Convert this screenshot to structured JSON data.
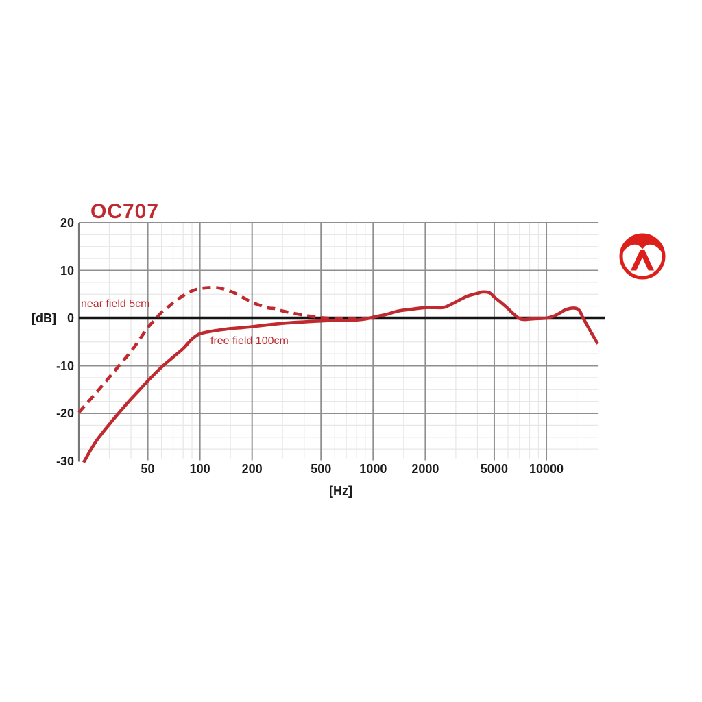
{
  "page": {
    "background": "#ffffff"
  },
  "header": {
    "title": "OC707"
  },
  "logo": {
    "name": "austrian-audio-logo",
    "color": "#dd1f1b"
  },
  "axis": {
    "y_unit_label": "[dB]",
    "x_unit_label": "[Hz]",
    "y_ticks": [
      {
        "label": "20",
        "value": 20
      },
      {
        "label": "10",
        "value": 10
      },
      {
        "label": "0",
        "value": 0
      },
      {
        "label": "-10",
        "value": -10
      },
      {
        "label": "-20",
        "value": -20
      },
      {
        "label": "-30",
        "value": -30
      }
    ],
    "x_ticks": [
      {
        "label": "50",
        "value": 50
      },
      {
        "label": "100",
        "value": 100
      },
      {
        "label": "200",
        "value": 200
      },
      {
        "label": "500",
        "value": 500
      },
      {
        "label": "1000",
        "value": 1000
      },
      {
        "label": "2000",
        "value": 2000
      },
      {
        "label": "5000",
        "value": 5000
      },
      {
        "label": "10000",
        "value": 10000
      }
    ]
  },
  "chart_data": {
    "type": "line",
    "title": "OC707",
    "xlabel": "[Hz]",
    "ylabel": "[dB]",
    "x_scale": "log",
    "xlim": [
      20,
      20000
    ],
    "ylim": [
      -30,
      20
    ],
    "grid": true,
    "x_major_gridlines": [
      50,
      100,
      200,
      500,
      1000,
      2000,
      5000,
      10000
    ],
    "x_minor_gridlines": [
      30,
      40,
      60,
      70,
      80,
      90,
      150,
      300,
      400,
      600,
      700,
      800,
      900,
      1500,
      3000,
      4000,
      6000,
      7000,
      8000,
      9000,
      15000
    ],
    "y_major_gridlines": [
      20,
      10,
      -10,
      -20
    ],
    "y_minor_step_db": 2.5,
    "zero_line_db": 0,
    "legend_position": "inside-left",
    "series": [
      {
        "name": "near field 5cm",
        "line_style": "dashed",
        "color": "#bf2a30",
        "points": [
          [
            20,
            -19.8
          ],
          [
            25,
            -15.8
          ],
          [
            30,
            -12.4
          ],
          [
            35,
            -9.5
          ],
          [
            40,
            -7.0
          ],
          [
            45,
            -4.4
          ],
          [
            50,
            -2.0
          ],
          [
            56,
            0.0
          ],
          [
            60,
            1.2
          ],
          [
            65,
            2.2
          ],
          [
            70,
            3.2
          ],
          [
            80,
            4.7
          ],
          [
            90,
            5.7
          ],
          [
            100,
            6.2
          ],
          [
            112,
            6.4
          ],
          [
            125,
            6.4
          ],
          [
            140,
            6.0
          ],
          [
            160,
            5.2
          ],
          [
            180,
            4.2
          ],
          [
            200,
            3.3
          ],
          [
            225,
            2.6
          ],
          [
            250,
            2.1
          ],
          [
            270,
            2.0
          ],
          [
            300,
            1.5
          ],
          [
            350,
            1.0
          ],
          [
            400,
            0.6
          ],
          [
            450,
            0.3
          ],
          [
            500,
            0.1
          ],
          [
            550,
            0.0
          ],
          [
            600,
            -0.1
          ],
          [
            700,
            -0.2
          ],
          [
            800,
            -0.2
          ],
          [
            900,
            -0.1
          ],
          [
            1000,
            0.1
          ]
        ]
      },
      {
        "name": "free field 100cm",
        "line_style": "solid",
        "color": "#bf2a30",
        "points": [
          [
            21.3,
            -30.3
          ],
          [
            25,
            -26.0
          ],
          [
            30,
            -22.3
          ],
          [
            35,
            -19.4
          ],
          [
            40,
            -17.0
          ],
          [
            45,
            -15.0
          ],
          [
            50,
            -13.2
          ],
          [
            60,
            -10.3
          ],
          [
            70,
            -8.2
          ],
          [
            80,
            -6.4
          ],
          [
            90,
            -4.4
          ],
          [
            100,
            -3.3
          ],
          [
            115,
            -2.8
          ],
          [
            130,
            -2.5
          ],
          [
            150,
            -2.2
          ],
          [
            175,
            -2.0
          ],
          [
            200,
            -1.8
          ],
          [
            250,
            -1.4
          ],
          [
            300,
            -1.1
          ],
          [
            350,
            -0.9
          ],
          [
            400,
            -0.8
          ],
          [
            500,
            -0.6
          ],
          [
            600,
            -0.5
          ],
          [
            700,
            -0.5
          ],
          [
            800,
            -0.4
          ],
          [
            900,
            -0.2
          ],
          [
            1000,
            0.2
          ],
          [
            1200,
            0.8
          ],
          [
            1400,
            1.5
          ],
          [
            1700,
            1.9
          ],
          [
            2000,
            2.2
          ],
          [
            2300,
            2.2
          ],
          [
            2600,
            2.3
          ],
          [
            3000,
            3.4
          ],
          [
            3500,
            4.6
          ],
          [
            4000,
            5.2
          ],
          [
            4300,
            5.5
          ],
          [
            4700,
            5.3
          ],
          [
            5000,
            4.4
          ],
          [
            5500,
            3.2
          ],
          [
            6000,
            2.0
          ],
          [
            6500,
            0.8
          ],
          [
            7000,
            -0.1
          ],
          [
            7500,
            -0.3
          ],
          [
            8000,
            -0.2
          ],
          [
            9000,
            -0.1
          ],
          [
            10000,
            0.0
          ],
          [
            11000,
            0.4
          ],
          [
            12000,
            1.1
          ],
          [
            13000,
            1.8
          ],
          [
            14500,
            2.1
          ],
          [
            15500,
            1.6
          ],
          [
            16300,
            0.0
          ],
          [
            18000,
            -2.8
          ],
          [
            19500,
            -5.0
          ],
          [
            19800,
            -5.4
          ]
        ]
      }
    ]
  },
  "colors": {
    "curve_red": "#bf2a30",
    "logo_red": "#dd1f1b",
    "grid_major": "#8f8f8f",
    "grid_minor": "#e7e7e7",
    "axis_line": "#777777",
    "zero_line": "#141414",
    "tick_label": "#1a1a1a"
  }
}
